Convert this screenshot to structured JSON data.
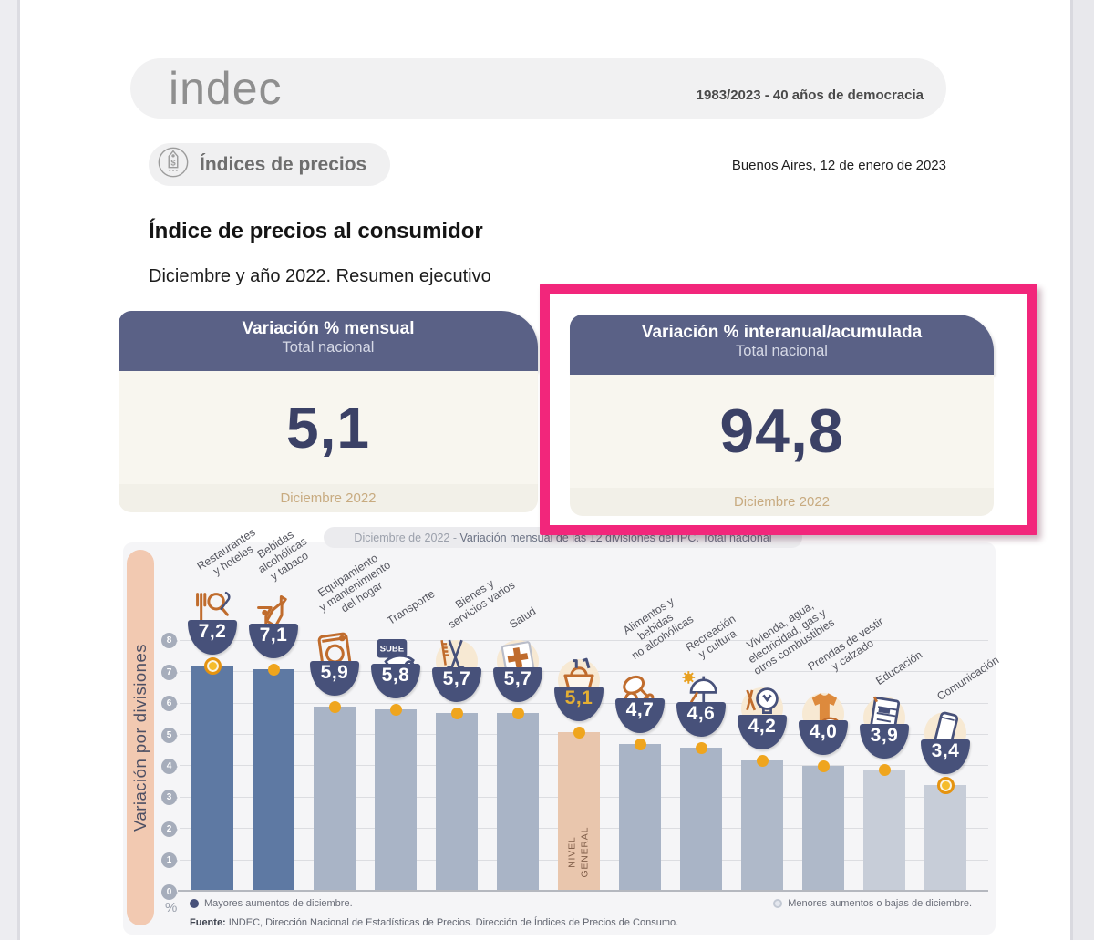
{
  "header": {
    "logo": "indec",
    "slogan": "1983/2023 - 40 años de democracia",
    "badge": "Índices de precios",
    "dateline": "Buenos Aires, 12 de enero de 2023",
    "title": "Índice de precios al consumidor",
    "subtitle": "Diciembre y año 2022. Resumen ejecutivo"
  },
  "cards": [
    {
      "title": "Variación % mensual",
      "subtitle": "Total nacional",
      "value": "5,1",
      "period": "Diciembre 2022"
    },
    {
      "title": "Variación % interanual/acumulada",
      "subtitle": "Total nacional",
      "value": "94,8",
      "period": "Diciembre 2022"
    }
  ],
  "annotation": {
    "type": "highlight-box",
    "color": "#f2267b",
    "target": "Variación % interanual/acumulada card"
  },
  "chart_data": {
    "type": "bar",
    "title_prefix": "Diciembre de 2022 - ",
    "title_rest": "Variación mensual de las 12 divisiones del IPC. Total nacional",
    "ylabel": "Variación por divisiones",
    "unit": "%",
    "ylim": [
      0,
      8
    ],
    "grid": true,
    "ticks": [
      "8",
      "7",
      "6",
      "5",
      "4",
      "3",
      "2",
      "1",
      "0"
    ],
    "categories": [
      {
        "label": "Restaurantes\ny hoteles",
        "value": 7.2,
        "display": "7,2",
        "color": "#5e79a3",
        "icon": "restaurant-icon",
        "halo": false,
        "ring": true
      },
      {
        "label": "Bebidas\nalcohólicas\ny tabaco",
        "value": 7.1,
        "display": "7,1",
        "color": "#5e79a3",
        "icon": "drinks-icon",
        "halo": false
      },
      {
        "label": "Equipamiento\ny mantenimiento\ndel hogar",
        "value": 5.9,
        "display": "5,9",
        "color": "#a9b4c6",
        "icon": "washing-machine-icon",
        "halo": false
      },
      {
        "label": "Transporte",
        "value": 5.8,
        "display": "5,8",
        "color": "#a9b4c6",
        "icon": "sube-card-icon",
        "halo": false,
        "icon_text": "SUBE"
      },
      {
        "label": "Bienes y\nservicios varios",
        "value": 5.7,
        "display": "5,7",
        "color": "#a9b4c6",
        "icon": "grooming-icon",
        "halo": true
      },
      {
        "label": "Salud",
        "value": 5.7,
        "display": "5,7",
        "color": "#a9b4c6",
        "icon": "health-cross-icon",
        "halo": true
      },
      {
        "label": "",
        "value": 5.1,
        "display": "5,1",
        "color": "#e9c6ad",
        "icon": "basket-icon",
        "halo": true,
        "value_color": "#e4af33",
        "bar_label": "NIVEL\nGENERAL"
      },
      {
        "label": "Alimentos y\nbebidas\nno alcohólicas",
        "value": 4.7,
        "display": "4,7",
        "color": "#a9b4c6",
        "icon": "food-icon",
        "halo": false
      },
      {
        "label": "Recreación\ny cultura",
        "value": 4.6,
        "display": "4,6",
        "color": "#a9b4c6",
        "icon": "recreation-icon",
        "halo": false
      },
      {
        "label": "Vivienda, agua,\nelectricidad, gas y\notros combustibles",
        "value": 4.2,
        "display": "4,2",
        "color": "#afb9c9",
        "icon": "light-bulb-icon",
        "halo": true
      },
      {
        "label": "Prendas de vestir\ny calzado",
        "value": 4.0,
        "display": "4,0",
        "color": "#afb9c9",
        "icon": "clothing-icon",
        "halo": true
      },
      {
        "label": "Educación",
        "value": 3.9,
        "display": "3,9",
        "color": "#c7cdd8",
        "icon": "notebook-icon",
        "halo": true
      },
      {
        "label": "Comunicación",
        "value": 3.4,
        "display": "3,4",
        "color": "#c7cdd8",
        "icon": "smartphone-icon",
        "halo": true,
        "ring": true
      }
    ],
    "legend": [
      {
        "label": "Mayores aumentos de diciembre.",
        "color": "#47517a",
        "style": "dark"
      },
      {
        "label": "Menores aumentos o bajas de diciembre.",
        "color": "#c9ced9",
        "style": "light"
      }
    ],
    "source_prefix": "Fuente:",
    "source_text": " INDEC, Dirección Nacional de Estadísticas de Precios. Dirección de Índices de Precios de Consumo."
  }
}
